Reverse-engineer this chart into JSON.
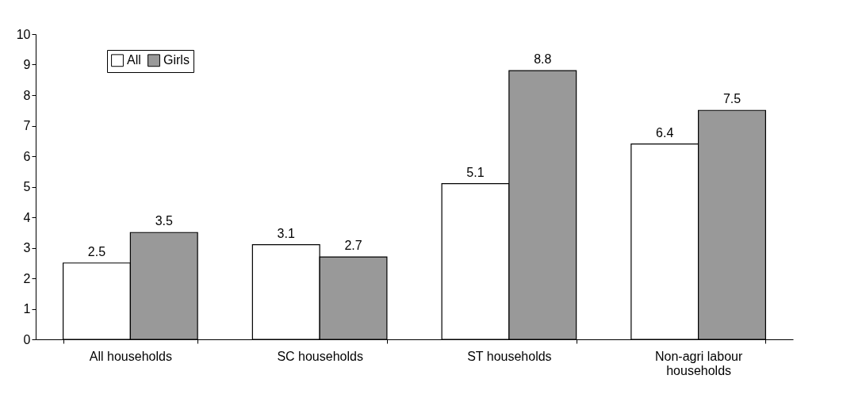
{
  "chart_data": {
    "type": "bar",
    "categories": [
      "All households",
      "SC households",
      "ST households",
      "Non-agri labour households"
    ],
    "series": [
      {
        "name": "All",
        "color": "#ffffff",
        "values": [
          2.5,
          3.1,
          5.1,
          6.4
        ]
      },
      {
        "name": "Girls",
        "color": "#999999",
        "values": [
          3.5,
          2.7,
          8.8,
          7.5
        ]
      }
    ],
    "ylim": [
      0,
      10
    ],
    "yticks": [
      0,
      1,
      2,
      3,
      4,
      5,
      6,
      7,
      8,
      9,
      10
    ],
    "data_labels": true,
    "legend": "top left",
    "grid": false
  }
}
